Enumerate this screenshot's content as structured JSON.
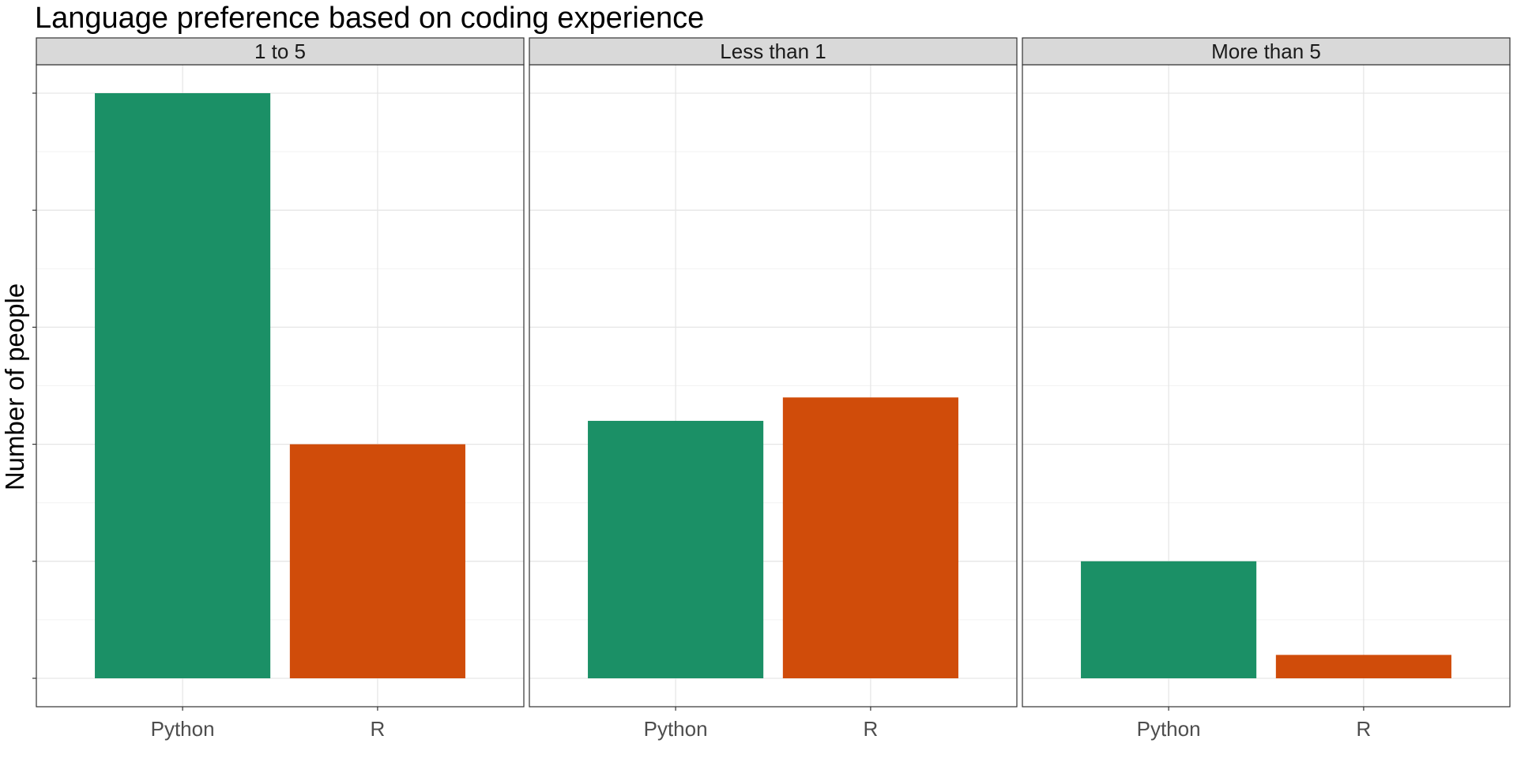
{
  "chart_data": {
    "type": "bar",
    "title": "Language preference based on coding experience",
    "ylabel": "Number of people",
    "xlabel": "",
    "ylim": [
      -0.25,
      5
    ],
    "y_ticks": [
      0,
      1,
      2,
      3,
      4,
      5
    ],
    "y_tick_labels_shown": false,
    "grid": true,
    "categories": [
      "Python",
      "R"
    ],
    "colors": {
      "Python": "#1b9066",
      "R": "#d04c0a"
    },
    "facets": [
      {
        "label": "1 to 5",
        "values": [
          5,
          2
        ]
      },
      {
        "label": "Less than 1",
        "values": [
          2.2,
          2.4
        ]
      },
      {
        "label": "More than 5",
        "values": [
          1,
          0.2
        ]
      }
    ]
  }
}
